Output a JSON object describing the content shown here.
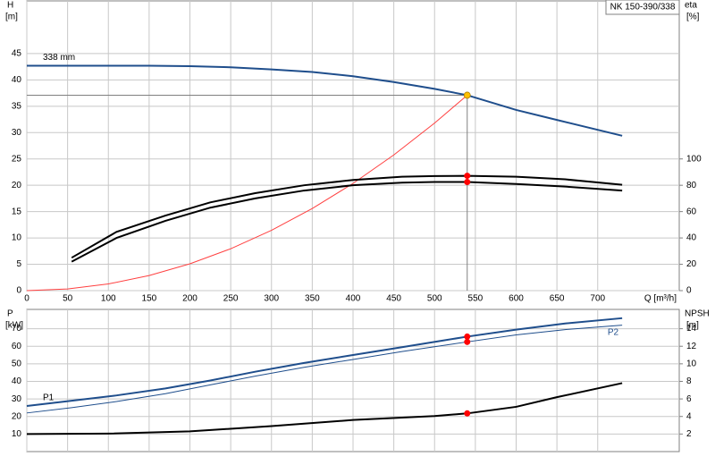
{
  "chart_data": [
    {
      "type": "line",
      "title": "NK 150-390/338",
      "ylabel": [
        "H",
        "[m]"
      ],
      "y2label": [
        "eta",
        "[%]"
      ],
      "xlabel": "Q [m³/h]",
      "xlim": [
        0,
        800
      ],
      "xticks": [
        0,
        50,
        100,
        150,
        200,
        250,
        300,
        350,
        400,
        450,
        500,
        550,
        600,
        650,
        700
      ],
      "ylim": [
        0,
        55
      ],
      "yticks": [
        0,
        5,
        10,
        15,
        20,
        25,
        30,
        35,
        40,
        45
      ],
      "y2lim": [
        0,
        220
      ],
      "y2ticks": [
        0,
        20,
        40,
        60,
        80,
        100
      ],
      "grid": true,
      "xtick_labels": true,
      "guides": true,
      "marker_color": "#ff0000",
      "duty_point": {
        "x": 540,
        "y": 37.1
      },
      "series": [
        {
          "name": "338 mm",
          "color": "#1f4e8c",
          "width": 2,
          "marker": true,
          "marker_color": "#ffc000",
          "x": [
            0,
            50,
            100,
            150,
            200,
            250,
            300,
            350,
            400,
            450,
            500,
            540,
            600,
            650,
            730
          ],
          "values": [
            42.7,
            42.7,
            42.7,
            42.7,
            42.6,
            42.4,
            42.0,
            41.5,
            40.7,
            39.6,
            38.3,
            37.1,
            34.3,
            32.4,
            29.4
          ]
        },
        {
          "color": "#ff4040",
          "width": 1,
          "marker": false,
          "x": [
            0,
            50,
            100,
            150,
            200,
            250,
            300,
            350,
            400,
            450,
            500,
            540
          ],
          "values": [
            0,
            0.32,
            1.27,
            2.86,
            5.09,
            7.95,
            11.45,
            15.58,
            20.35,
            25.76,
            31.8,
            37.1
          ]
        },
        {
          "color": "#000000",
          "width": 2,
          "marker": true,
          "axis": "y2",
          "x": [
            55,
            110,
            170,
            225,
            280,
            340,
            400,
            460,
            500,
            540,
            600,
            660,
            730
          ],
          "values": [
            25,
            44.6,
            57,
            67,
            74,
            80,
            84,
            86.5,
            87,
            87.2,
            86.5,
            84.5,
            80.4
          ]
        },
        {
          "color": "#000000",
          "width": 2,
          "marker": true,
          "axis": "y2",
          "x": [
            55,
            110,
            170,
            225,
            280,
            340,
            400,
            460,
            500,
            540,
            600,
            660,
            730
          ],
          "values": [
            22,
            40,
            53,
            63,
            70,
            76,
            80,
            82,
            82.5,
            82.5,
            81,
            79,
            76
          ]
        }
      ]
    },
    {
      "type": "line",
      "ylabel": [
        "P",
        "[kW]"
      ],
      "y2label": [
        "NPSH",
        "[m]"
      ],
      "xlim": [
        0,
        800
      ],
      "xticks": [
        0,
        50,
        100,
        150,
        200,
        250,
        300,
        350,
        400,
        450,
        500,
        550,
        600,
        650,
        700
      ],
      "ylim": [
        0,
        81
      ],
      "yticks": [
        10,
        20,
        30,
        40,
        50,
        60,
        70
      ],
      "y2lim": [
        0,
        16.2
      ],
      "y2ticks": [
        2,
        4,
        6,
        8,
        10,
        12,
        14
      ],
      "grid": true,
      "xtick_labels": false,
      "guides": false,
      "marker_color": "#ff0000",
      "duty_point": {
        "x": 540
      },
      "series": [
        {
          "name": "P1",
          "color": "#1f4e8c",
          "width": 2,
          "marker": true,
          "x": [
            0,
            55,
            110,
            170,
            225,
            280,
            340,
            400,
            460,
            540,
            600,
            660,
            730
          ],
          "values": [
            26,
            29,
            32,
            36,
            40.5,
            45.5,
            50.5,
            55,
            59.5,
            65.5,
            69.5,
            73,
            76
          ]
        },
        {
          "name": "P2",
          "color": "#1f4e8c",
          "width": 1,
          "marker": true,
          "x": [
            0,
            55,
            110,
            170,
            225,
            280,
            340,
            400,
            460,
            540,
            600,
            660,
            730
          ],
          "values": [
            22,
            25,
            28.5,
            33,
            38,
            43,
            48,
            52.5,
            57,
            62.5,
            66.5,
            69.5,
            72
          ]
        },
        {
          "color": "#000000",
          "width": 2,
          "marker": true,
          "axis": "y2",
          "x": [
            0,
            100,
            200,
            300,
            400,
            500,
            540,
            600,
            650,
            730
          ],
          "values": [
            2.0,
            2.05,
            2.3,
            2.9,
            3.6,
            4.05,
            4.35,
            5.1,
            6.2,
            7.8
          ]
        }
      ]
    }
  ]
}
